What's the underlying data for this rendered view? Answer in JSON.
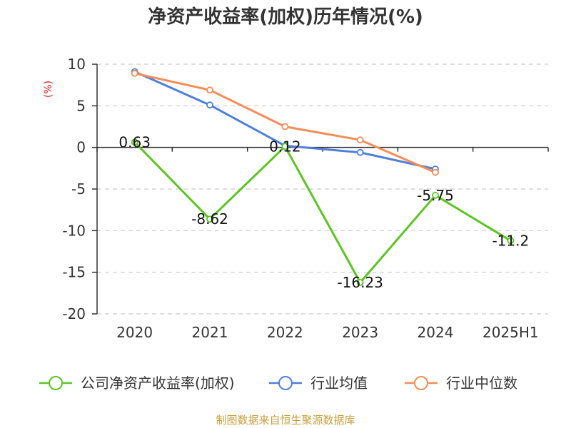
{
  "chart_data": {
    "type": "line",
    "title": "净资产收益率(加权)历年情况(%)",
    "xlabel": "",
    "ylabel": "(%)",
    "categories": [
      "2020",
      "2021",
      "2022",
      "2023",
      "2024",
      "2025H1"
    ],
    "ylim": [
      -20,
      10
    ],
    "yticks": [
      10,
      5,
      0,
      -5,
      -10,
      -15,
      -20
    ],
    "grid": true,
    "legend_position": "bottom",
    "series": [
      {
        "name": "公司净资产收益率(加权)",
        "color": "#5cc424",
        "values": [
          0.63,
          -8.62,
          0.12,
          -16.23,
          -5.75,
          -11.2
        ],
        "labels": [
          "0.63",
          "-8.62",
          "0.12",
          "-16.23",
          "-5.75",
          "-11.2"
        ]
      },
      {
        "name": "行业均值",
        "color": "#4f7fdb",
        "values": [
          9.1,
          5.1,
          0.2,
          -0.6,
          -2.6,
          null
        ]
      },
      {
        "name": "行业中位数",
        "color": "#f78c57",
        "values": [
          8.9,
          6.9,
          2.5,
          0.9,
          -3.0,
          null
        ]
      }
    ]
  },
  "source": "制图数据来自恒生聚源数据库"
}
